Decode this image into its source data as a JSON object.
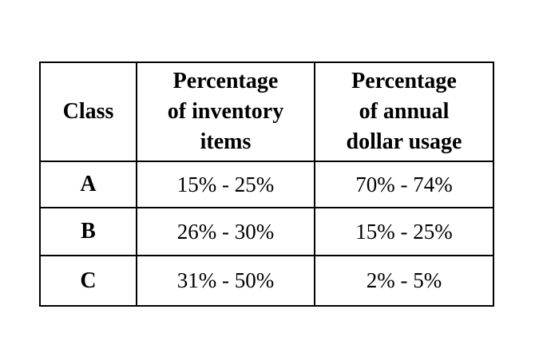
{
  "colors": {
    "background": "#ffffff",
    "border": "#000000",
    "text": "#000000"
  },
  "table": {
    "header": [
      "Class",
      "Percentage\nof inventory\nitems",
      "Percentage\nof annual\ndollar usage"
    ],
    "rows": [
      {
        "class": "A",
        "inventory": "15% - 25%",
        "dollar": "70% - 74%"
      },
      {
        "class": "B",
        "inventory": "26% - 30%",
        "dollar": "15% - 25%"
      },
      {
        "class": "C",
        "inventory": "31% - 50%",
        "dollar": "2% - 5%"
      }
    ]
  },
  "chart_data": {
    "type": "table",
    "title": "",
    "columns": [
      "Class",
      "Percentage of inventory items",
      "Percentage of annual dollar usage"
    ],
    "rows": [
      [
        "A",
        "15% - 25%",
        "70% - 74%"
      ],
      [
        "B",
        "26% - 30%",
        "15% - 25%"
      ],
      [
        "C",
        "31% - 50%",
        "2% - 5%"
      ]
    ]
  }
}
